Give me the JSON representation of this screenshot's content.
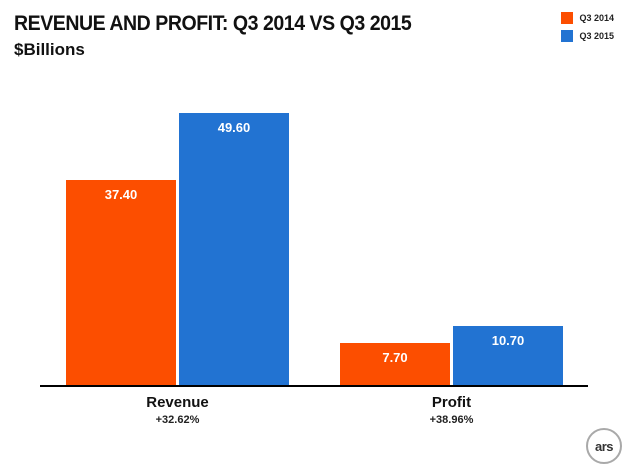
{
  "chart_data": {
    "type": "bar",
    "title": "REVENUE AND PROFIT: Q3 2014 VS Q3 2015",
    "subtitle": "$Billions",
    "categories": [
      "Revenue",
      "Profit"
    ],
    "category_sublabels": [
      "+32.62%",
      "+38.96%"
    ],
    "series": [
      {
        "name": "Q3 2014",
        "color": "#fc4e00",
        "values": [
          37.4,
          7.7
        ]
      },
      {
        "name": "Q3 2015",
        "color": "#2273d2",
        "values": [
          49.6,
          10.7
        ]
      }
    ],
    "ylim": [
      0,
      52
    ],
    "grid": false,
    "legend_position": "top-right",
    "value_format": "2dp"
  },
  "logo": {
    "text": "ars"
  }
}
